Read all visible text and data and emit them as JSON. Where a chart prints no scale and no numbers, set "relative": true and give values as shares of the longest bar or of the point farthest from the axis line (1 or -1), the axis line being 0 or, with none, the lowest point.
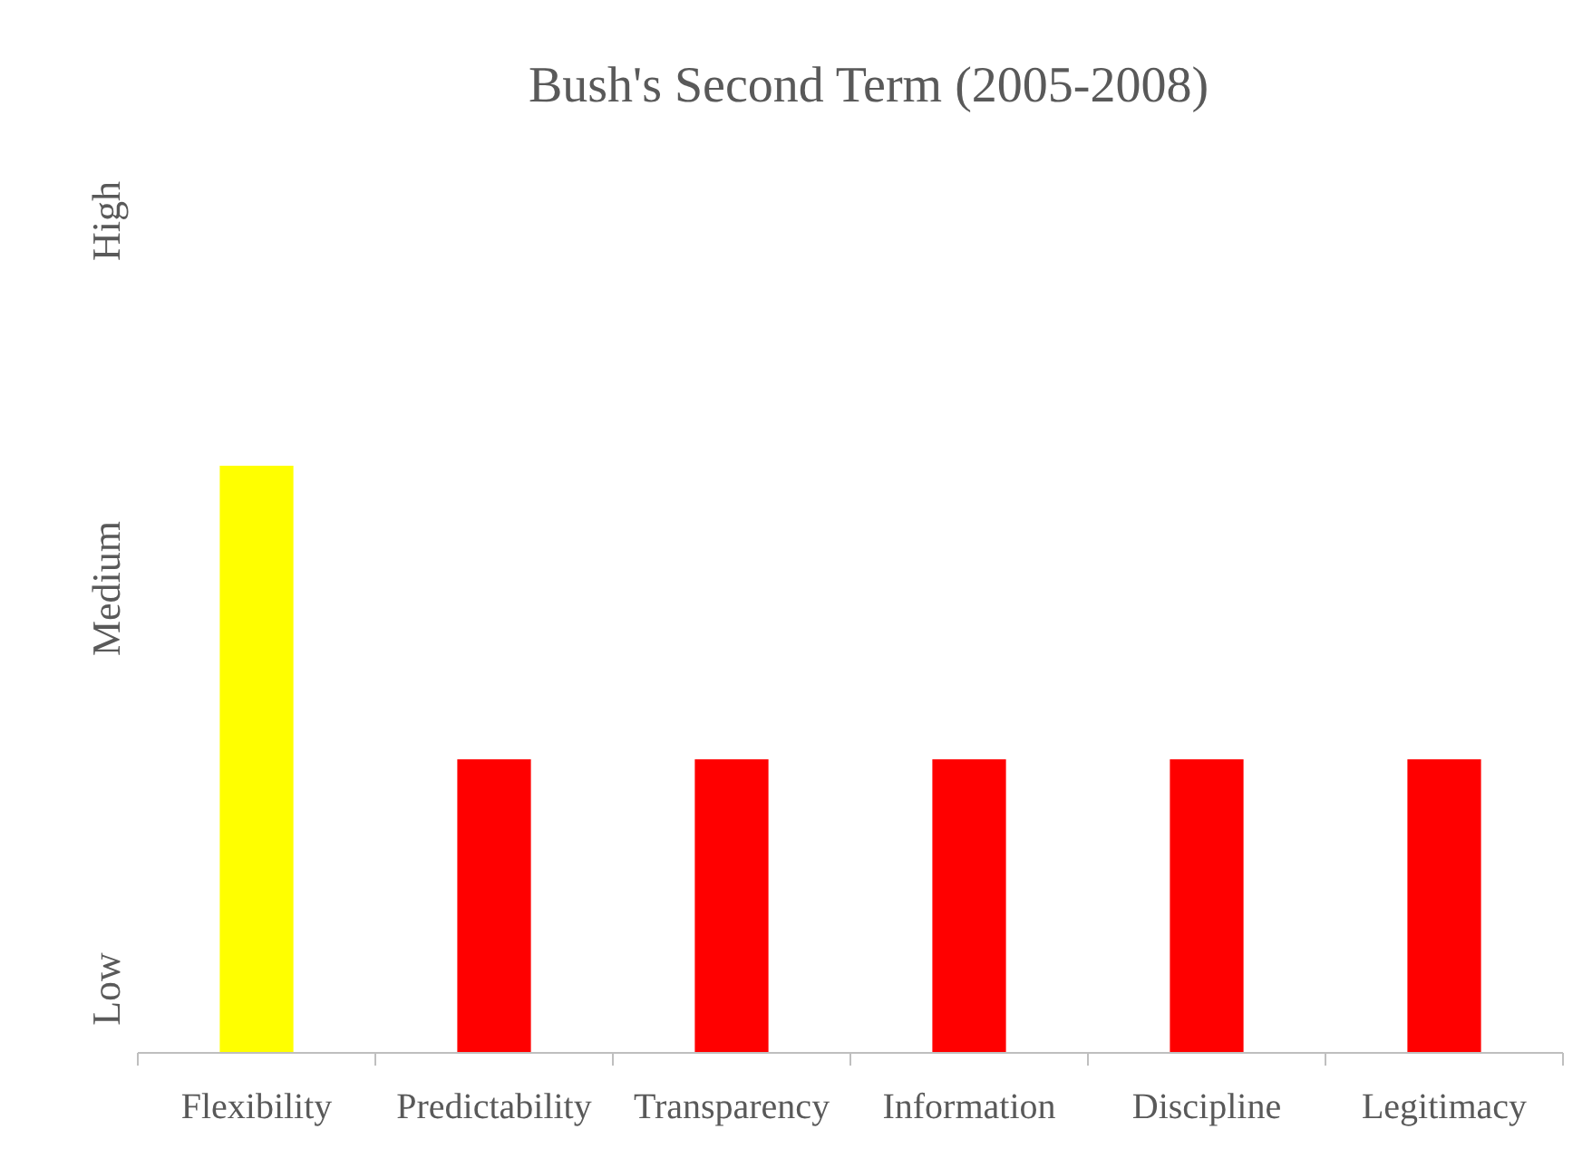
{
  "chart_data": {
    "type": "bar",
    "title": "Bush's Second Term (2005-2008)",
    "ylabel": "Low Medium High",
    "categories": [
      "Flexibility",
      "Predictability",
      "Transparency",
      "Information",
      "Discipline",
      "Legitimacy"
    ],
    "values": [
      1,
      0.5,
      0.5,
      0.5,
      0.5,
      0.5
    ],
    "colors": [
      "#ffff00",
      "#ff0000",
      "#ff0000",
      "#ff0000",
      "#ff0000",
      "#ff0000"
    ],
    "relative": true
  }
}
